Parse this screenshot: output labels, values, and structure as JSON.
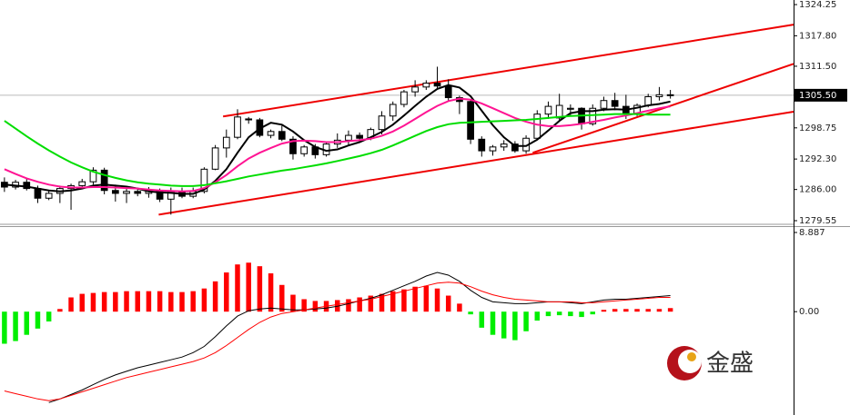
{
  "watermark": "金盛",
  "chart_data": [
    {
      "type": "candlestick",
      "xlim": [
        -0.4,
        71.1
      ],
      "ylim": [
        1278.8,
        1325.2
      ],
      "yticks": [
        1324.25,
        {
          "value": 1317.8,
          "label": "1317.80"
        },
        {
          "value": 1311.5,
          "label": "1311.50"
        },
        1298.75,
        {
          "value": 1292.3,
          "label": "1292.30"
        },
        {
          "value": 1286,
          "label": "1286.00"
        },
        1279.55
      ],
      "last_price": {
        "value": 1305.5,
        "label": "1305.50"
      },
      "up_color": "#ffffff",
      "down_color": "#000000",
      "open": [
        1287.5,
        1286.5,
        1287.5,
        1286.2,
        1284.2,
        1285.2,
        1286.2,
        1286.8,
        1287.6,
        1290,
        1285.8,
        1285.2,
        1285.6,
        1285.2,
        1285.8,
        1284,
        1285.6,
        1284.6,
        1285.6,
        1290.2,
        1294.6,
        1296.8,
        1300.6,
        1300.4,
        1297.2,
        1298,
        1296.4,
        1293.4,
        1294.8,
        1293.2,
        1295.4,
        1296.2,
        1297.2,
        1296.6,
        1298.4,
        1301.2,
        1303.6,
        1306.2,
        1307.2,
        1308,
        1307.4,
        1305,
        1304.2,
        1296.4,
        1294,
        1294.8,
        1295.4,
        1294,
        1296.6,
        1301.6,
        1300.8,
        1302.6,
        1302.8,
        1299.6,
        1302.8,
        1304.4,
        1303.2,
        1301.6,
        1303.4,
        1305.2,
        1305.6
      ],
      "high": [
        1288.5,
        1288,
        1288.3,
        1286.8,
        1285.8,
        1286.8,
        1287.2,
        1288.2,
        1290.6,
        1290.5,
        1287,
        1286.2,
        1286.4,
        1286.5,
        1286.2,
        1286.4,
        1286.4,
        1286.4,
        1290.6,
        1295.2,
        1298.4,
        1302.6,
        1301,
        1300.8,
        1298.4,
        1299.2,
        1297,
        1295.2,
        1295.4,
        1295.6,
        1297.6,
        1298.2,
        1297.8,
        1298.8,
        1302.2,
        1304.2,
        1306.6,
        1308.6,
        1308.6,
        1311.4,
        1308.8,
        1305.4,
        1304.6,
        1297,
        1295.2,
        1296.2,
        1296,
        1297.2,
        1302.4,
        1304.2,
        1305.8,
        1303.6,
        1303,
        1303.6,
        1305.2,
        1306,
        1305.6,
        1303.8,
        1305.8,
        1307.2,
        1306.6
      ],
      "low": [
        1285.5,
        1286,
        1285.8,
        1283.2,
        1283.8,
        1283.2,
        1281.8,
        1286.2,
        1287,
        1285,
        1283.5,
        1283.2,
        1284.6,
        1284.3,
        1283.4,
        1280.8,
        1284.2,
        1284.2,
        1285.2,
        1290,
        1292.6,
        1296.4,
        1299.6,
        1296.8,
        1296.6,
        1296,
        1292.2,
        1292.8,
        1292.4,
        1292.8,
        1294.6,
        1295,
        1295.8,
        1296.2,
        1297.4,
        1300.2,
        1303,
        1305.2,
        1306.6,
        1306.6,
        1304.4,
        1301.6,
        1295.4,
        1292.8,
        1293,
        1294,
        1293.6,
        1293.4,
        1296.2,
        1300.6,
        1300.2,
        1301.2,
        1298.4,
        1299.2,
        1302.2,
        1302.4,
        1300.6,
        1301.2,
        1303,
        1304.4,
        1304.8
      ],
      "close": [
        1286.5,
        1287.5,
        1286.2,
        1284.2,
        1285.2,
        1286.2,
        1286.8,
        1287.6,
        1290,
        1285.8,
        1285.2,
        1285.6,
        1285.2,
        1285.8,
        1284,
        1285.6,
        1284.6,
        1285.6,
        1290.2,
        1294.6,
        1296.8,
        1301,
        1300.4,
        1297.2,
        1298,
        1296.4,
        1293.4,
        1294.8,
        1293.2,
        1295.4,
        1296.2,
        1297.2,
        1296.6,
        1298.4,
        1301.2,
        1303.6,
        1306.2,
        1307.2,
        1308,
        1307.4,
        1305,
        1304.2,
        1296.4,
        1294,
        1294.8,
        1295.4,
        1294,
        1296.6,
        1301.6,
        1303.2,
        1303.4,
        1302.8,
        1299.6,
        1302.8,
        1304.4,
        1303.2,
        1301.6,
        1303.4,
        1305.2,
        1305.6,
        1305.5
      ],
      "series": [
        {
          "color": "#000000",
          "values": [
            1287,
            1286.8,
            1286.6,
            1286.2,
            1285.8,
            1285.6,
            1285.8,
            1286.2,
            1286.8,
            1287,
            1286.8,
            1286.6,
            1286.2,
            1285.6,
            1285.4,
            1285.3,
            1285.1,
            1285.1,
            1286,
            1287.8,
            1290.2,
            1293.6,
            1296.8,
            1298.6,
            1299.8,
            1299.4,
            1298,
            1296.2,
            1294.8,
            1294,
            1294.3,
            1295.1,
            1295.8,
            1296.8,
            1297.9,
            1299.4,
            1301.3,
            1303.3,
            1305.2,
            1306.8,
            1307.6,
            1307.1,
            1305.3,
            1302.3,
            1299.3,
            1296.8,
            1295,
            1295,
            1296.3,
            1298.2,
            1300.2,
            1301.8,
            1302.2,
            1302.2,
            1302.5,
            1302.6,
            1302.5,
            1302.9,
            1303.4,
            1303.7,
            1304.2
          ]
        },
        {
          "color": "#ff1493",
          "values": [
            1290.2,
            1289.2,
            1288.3,
            1287.6,
            1287,
            1286.6,
            1286.4,
            1286.4,
            1286.5,
            1286.5,
            1286.4,
            1286.3,
            1286.2,
            1286,
            1285.8,
            1285.7,
            1285.6,
            1285.7,
            1286.3,
            1287.5,
            1289,
            1290.8,
            1292.4,
            1293.6,
            1294.6,
            1295.5,
            1296,
            1296.1,
            1296,
            1295.8,
            1295.8,
            1296,
            1296.2,
            1296.5,
            1297.1,
            1298,
            1299.2,
            1300.6,
            1302,
            1303.3,
            1304.3,
            1304.8,
            1304.6,
            1303.8,
            1302.8,
            1301.8,
            1300.8,
            1300,
            1299.4,
            1299.1,
            1299.1,
            1299.3,
            1299.6,
            1300,
            1300.4,
            1300.9,
            1301.3,
            1301.8,
            1302.3,
            1302.8,
            1303.2
          ]
        },
        {
          "color": "#00dd00",
          "values": [
            1300.2,
            1298.6,
            1297,
            1295.5,
            1294.1,
            1292.8,
            1291.6,
            1290.6,
            1289.7,
            1289,
            1288.4,
            1287.9,
            1287.5,
            1287.2,
            1287,
            1286.8,
            1286.7,
            1286.7,
            1286.9,
            1287.3,
            1287.7,
            1288.2,
            1288.7,
            1289.1,
            1289.5,
            1289.9,
            1290.2,
            1290.6,
            1291,
            1291.4,
            1291.9,
            1292.4,
            1292.9,
            1293.5,
            1294.2,
            1295.1,
            1296.1,
            1297.1,
            1298.1,
            1298.9,
            1299.5,
            1299.8,
            1299.9,
            1300,
            1300.1,
            1300.2,
            1300.3,
            1300.4,
            1300.6,
            1300.8,
            1301,
            1301.2,
            1301.3,
            1301.4,
            1301.5,
            1301.6,
            1301.6,
            1301.6,
            1301.5,
            1301.5,
            1301.5
          ]
        }
      ],
      "lines": [
        {
          "color": "#ee0000",
          "x": [
            19.7,
            71.1
          ],
          "y": [
            1301.1,
            1320.1
          ]
        },
        {
          "color": "#ee0000",
          "x": [
            13.9,
            71.1
          ],
          "y": [
            1280.8,
            1302.1
          ]
        },
        {
          "color": "#ee0000",
          "x": [
            47.6,
            71.1
          ],
          "y": [
            1293.6,
            1312.0
          ]
        }
      ]
    },
    {
      "type": "macd",
      "xlim": [
        -0.4,
        71.1
      ],
      "ylim": [
        -11.6,
        9.5
      ],
      "yticks": [
        8.887,
        {
          "value": 0,
          "label": "0.00"
        }
      ],
      "up_color": "#ff0000",
      "down_color": "#00ee00",
      "values": [
        -3.6,
        -3.3,
        -2.6,
        -1.9,
        -1.1,
        0.3,
        1.6,
        2.0,
        2.1,
        2.2,
        2.2,
        2.3,
        2.3,
        2.3,
        2.3,
        2.2,
        2.2,
        2.3,
        2.6,
        3.4,
        4.4,
        5.3,
        5.5,
        5.1,
        4.3,
        3.0,
        1.9,
        1.4,
        1.2,
        1.2,
        1.3,
        1.4,
        1.6,
        1.8,
        2.0,
        2.3,
        2.5,
        2.8,
        2.9,
        2.6,
        1.8,
        0.9,
        -0.3,
        -1.8,
        -2.6,
        -3.0,
        -3.2,
        -2.2,
        -1.0,
        -0.5,
        -0.4,
        -0.5,
        -0.6,
        -0.3,
        0.2,
        0.3,
        0.3,
        0.3,
        0.3,
        0.3,
        0.4
      ],
      "series": [
        {
          "color": "#000000",
          "values": [
            null,
            null,
            null,
            null,
            -10.2,
            -9.8,
            -9.3,
            -8.8,
            -8.2,
            -7.6,
            -7.1,
            -6.7,
            -6.3,
            -6.0,
            -5.7,
            -5.4,
            -5.1,
            -4.6,
            -3.9,
            -2.8,
            -1.6,
            -0.5,
            0.1,
            0.3,
            0.4,
            0.3,
            0.2,
            0.2,
            0.3,
            0.4,
            0.6,
            0.9,
            1.2,
            1.5,
            1.9,
            2.4,
            2.9,
            3.4,
            4.0,
            4.4,
            4.1,
            3.4,
            2.4,
            1.6,
            1.1,
            1.0,
            0.9,
            0.9,
            1.0,
            1.1,
            1.1,
            1.0,
            0.9,
            1.1,
            1.3,
            1.4,
            1.4,
            1.5,
            1.6,
            1.7,
            1.8
          ]
        },
        {
          "color": "#ff0000",
          "values": [
            -8.9,
            -9.2,
            -9.5,
            -9.8,
            -10.0,
            -9.8,
            -9.4,
            -9.0,
            -8.6,
            -8.2,
            -7.8,
            -7.4,
            -7.1,
            -6.8,
            -6.5,
            -6.2,
            -5.9,
            -5.6,
            -5.2,
            -4.6,
            -3.8,
            -2.9,
            -2.0,
            -1.2,
            -0.6,
            -0.2,
            0.0,
            0.2,
            0.4,
            0.6,
            0.8,
            1.0,
            1.2,
            1.4,
            1.7,
            2.0,
            2.3,
            2.6,
            2.9,
            3.2,
            3.3,
            3.2,
            2.8,
            2.3,
            1.9,
            1.6,
            1.4,
            1.3,
            1.2,
            1.1,
            1.1,
            1.1,
            1.0,
            1.0,
            1.1,
            1.2,
            1.3,
            1.4,
            1.5,
            1.6,
            1.6
          ]
        }
      ]
    }
  ]
}
